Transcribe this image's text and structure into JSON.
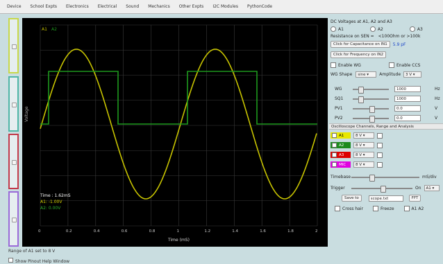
{
  "menu": [
    "Device",
    "School Expts",
    "Electronics",
    "Electrical",
    "Sound",
    "Mechanics",
    "Other Expts",
    "I2C Modules",
    "PythonCode"
  ],
  "plot": {
    "y_label": "Voltage",
    "x_label": "Time (mS)",
    "x_ticks": [
      "0",
      "0.2",
      "0.4",
      "0.6",
      "0.8",
      "1",
      "1.2",
      "1.4",
      "1.6",
      "1.8",
      "2"
    ],
    "legend_marks": [
      "A1",
      "A2"
    ],
    "readout_time": "Time : 1.62mS",
    "readout_a1": "A1: -1.00V",
    "readout_a2": "A2: 0.00V",
    "colors": {
      "a1": "#c8c400",
      "a2": "#1e9a1e",
      "grid": "#3a3a3a"
    }
  },
  "status": {
    "line1": "Range of A1 set to 8 V",
    "line2": "Show Pinout Help Window"
  },
  "panel": {
    "dc_title": "DC Voltages at A1, A2 and A3",
    "radios": [
      "A1",
      "A2",
      "A3"
    ],
    "resistance_label": "Resistance on SEN =",
    "resistance_value": "<100Ohm or >100k",
    "cap_button": "Click for Capacitance on IN1",
    "cap_value": "5.9 pF",
    "freq_button": "Click for Frequency on IN2",
    "enable_wg": "Enable WG",
    "enable_ccs": "Enable CCS",
    "wg_shape_label": "WG Shape",
    "wg_shape_value": "sine",
    "amplitude_label": "Amplitude",
    "amplitude_value": "3 V",
    "params": [
      {
        "label": "WG",
        "value": "1000",
        "unit": "Hz"
      },
      {
        "label": "SQ1",
        "value": "1000",
        "unit": "Hz"
      },
      {
        "label": "PV1",
        "value": "0.0",
        "unit": "V"
      },
      {
        "label": "PV2",
        "value": "0.0",
        "unit": "V"
      }
    ],
    "scope_header": "Oscilloscope Channels, Range and Analysis",
    "channels": [
      {
        "name": "A1",
        "range": "8 V",
        "color": "#e8e800"
      },
      {
        "name": "A2",
        "range": "8 V",
        "color": "#1c8a1c"
      },
      {
        "name": "A3",
        "range": "8 V",
        "color": "#dd0000"
      },
      {
        "name": "MIC",
        "range": "8 V",
        "color": "#e000e0"
      }
    ],
    "timebase_label": "Timebase",
    "timebase_unit": "mS/div",
    "trigger_label": "Trigger",
    "trigger_on": "On",
    "trigger_channel": "A1",
    "save_button": "Save to",
    "save_filename": "scope.txt",
    "fft_button": "FFT",
    "crosshair": "Cross hair",
    "freeze": "Freeze",
    "a1a2": "A1 A2"
  }
}
